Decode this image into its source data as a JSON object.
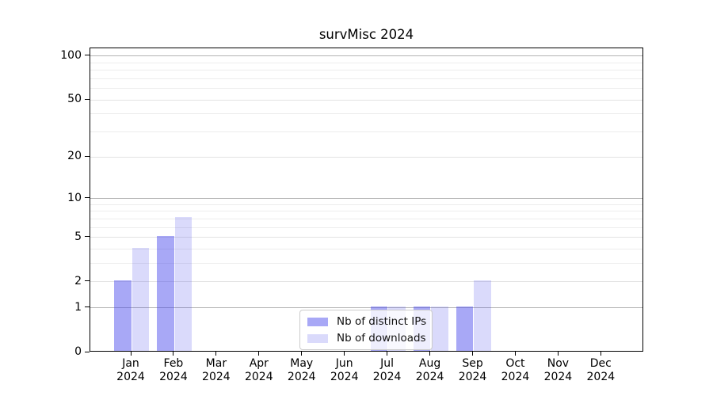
{
  "chart_data": {
    "type": "bar",
    "title": "survMisc 2024",
    "categories": [
      "Jan",
      "Feb",
      "Mar",
      "Apr",
      "May",
      "Jun",
      "Jul",
      "Aug",
      "Sep",
      "Oct",
      "Nov",
      "Dec"
    ],
    "category_year": "2024",
    "series": [
      {
        "name": "Nb of distinct IPs",
        "color": "rgba(70,70,235,0.47)",
        "values": [
          2,
          5,
          0,
          0,
          0,
          0,
          1,
          1,
          1,
          0,
          0,
          0
        ]
      },
      {
        "name": "Nb of downloads",
        "color": "rgba(70,70,235,0.20)",
        "values": [
          4,
          7,
          0,
          0,
          0,
          0,
          1,
          1,
          2,
          0,
          0,
          0
        ]
      }
    ],
    "xlabel": "",
    "ylabel": "",
    "y_axis": {
      "scale": "log1p",
      "ticks": [
        0,
        1,
        2,
        5,
        10,
        20,
        50,
        100
      ],
      "max_value": 113,
      "decade_gridlines": [
        1,
        10,
        100
      ],
      "mid_gridlines": [
        2,
        5,
        20,
        50
      ],
      "minor_gridlines": [
        3,
        4,
        6,
        7,
        8,
        9,
        30,
        40,
        60,
        70,
        80,
        90
      ]
    },
    "grid": true,
    "legend": {
      "position": "lower center",
      "entries": [
        "Nb of distinct IPs",
        "Nb of downloads"
      ]
    },
    "colors": {
      "decade_gridline": "#b2b2b2",
      "mid_gridline": "#e3e3e3",
      "minor_gridline": "#ededed",
      "axis": "#000000",
      "background": "#ffffff"
    }
  }
}
